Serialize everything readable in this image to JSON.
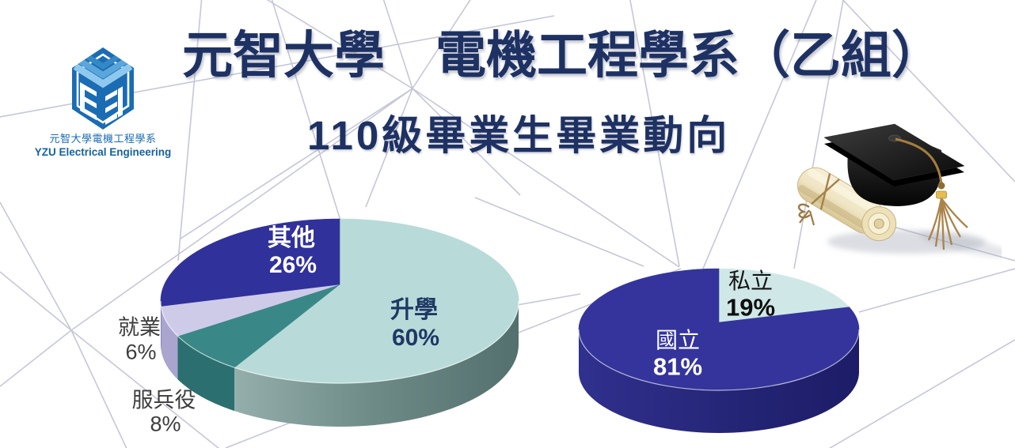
{
  "page": {
    "background": "#ffffff"
  },
  "logo": {
    "icon": "yzu-ee-hexagon-logo",
    "line1": "元智大學電機工程學系",
    "line2": "YZU Electrical Engineering",
    "color": "#1a6cb3"
  },
  "header": {
    "title": "元智大學　電機工程學系（乙組）",
    "subtitle": "110級畢業生畢業動向",
    "color": "#1e3163"
  },
  "decor": {
    "icon": "graduation-cap-with-diploma-scroll"
  },
  "chart_data": [
    {
      "type": "pie",
      "style": "3d",
      "start_angle_deg": 0,
      "clockwise": true,
      "legend": false,
      "slices": [
        {
          "label": "升學",
          "value": 60,
          "pct_text": "60%",
          "color": "#b8dbd9",
          "side_color": "gradient-gray-teal",
          "cut_color": "#a3bab7",
          "label_color": "#1f3864",
          "label_inside": true
        },
        {
          "label": "服兵役",
          "value": 8,
          "pct_text": "8%",
          "color": "#3a8787",
          "side_color": "#2c6f70",
          "label_color": "#3d3d3d",
          "label_inside": false
        },
        {
          "label": "就業",
          "value": 6,
          "pct_text": "6%",
          "color": "#cecbe9",
          "side_color": "#a9a5cf",
          "label_color": "#3d3d3d",
          "label_inside": false
        },
        {
          "label": "其他",
          "value": 26,
          "pct_text": "26%",
          "color": "#31319b",
          "side_color": "#26267c",
          "label_color": "#ffffff",
          "label_inside": true
        }
      ]
    },
    {
      "type": "pie",
      "style": "3d",
      "start_angle_deg": 0,
      "clockwise": true,
      "legend": false,
      "slices": [
        {
          "label": "私立",
          "value": 19,
          "pct_text": "19%",
          "color": "#cfe8e7",
          "side_color": "#9fc4c3",
          "label_color": "#141414",
          "label_inside": false
        },
        {
          "label": "國立",
          "value": 81,
          "pct_text": "81%",
          "color": "#34349c",
          "side_color": "gradient-navy",
          "label_color": "#ffffff",
          "label_inside": true
        }
      ]
    }
  ]
}
